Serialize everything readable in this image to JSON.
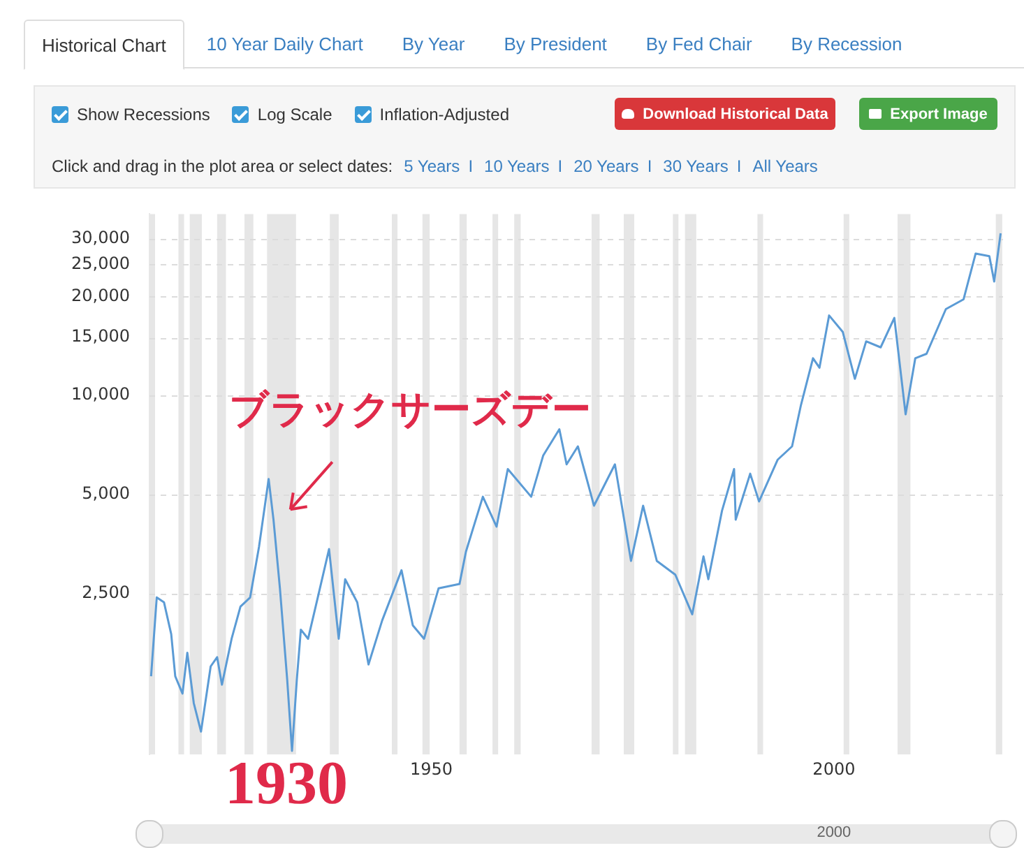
{
  "chart_data": {
    "type": "line",
    "x": [
      1915.2,
      1915.9,
      1916.8,
      1917.7,
      1918.2,
      1919.1,
      1919.7,
      1920.5,
      1921.4,
      1922.6,
      1923.4,
      1924.0,
      1925.2,
      1926.3,
      1927.5,
      1928.6,
      1929.8,
      1930.4,
      1931.2,
      1932.1,
      1932.7,
      1933.3,
      1933.8,
      1934.7,
      1935.9,
      1937.3,
      1938.5,
      1939.3,
      1940.8,
      1942.2,
      1943.9,
      1946.3,
      1947.7,
      1949.1,
      1950.9,
      1953.5,
      1954.3,
      1956.4,
      1958.1,
      1959.5,
      1962.4,
      1963.9,
      1965.9,
      1966.8,
      1968.2,
      1970.2,
      1972.8,
      1974.8,
      1976.3,
      1978.0,
      1980.3,
      1982.4,
      1983.8,
      1984.4,
      1986.1,
      1987.6,
      1987.8,
      1989.6,
      1990.7,
      1993.0,
      1994.8,
      1995.9,
      1997.4,
      1998.2,
      1999.4,
      2001.1,
      2002.6,
      2004.0,
      2005.8,
      2007.5,
      2008.9,
      2010.1,
      2011.5,
      2013.9,
      2016.1,
      2017.6,
      2019.3,
      2019.9,
      2020.7
    ],
    "series": [
      {
        "color": "#5b9bd5",
        "values": [
          1400,
          2430,
          2350,
          1880,
          1400,
          1240,
          1650,
          1160,
          950,
          1500,
          1600,
          1320,
          1820,
          2280,
          2430,
          3460,
          5570,
          4190,
          2590,
          1370,
          830,
          1370,
          1940,
          1820,
          2430,
          3410,
          1820,
          2760,
          2350,
          1520,
          2070,
          2940,
          2000,
          1820,
          2590,
          2670,
          3350,
          4920,
          3990,
          5970,
          4920,
          6570,
          7890,
          6170,
          7000,
          4620,
          6170,
          3140,
          4620,
          3140,
          2850,
          2160,
          3240,
          2760,
          4460,
          5970,
          4190,
          5780,
          4760,
          6370,
          7000,
          9340,
          12970,
          12140,
          17500,
          15590,
          11230,
          14600,
          14000,
          17200,
          8760,
          12970,
          13380,
          18300,
          19600,
          27000,
          26500,
          22200,
          31100
        ]
      }
    ],
    "log": "y",
    "xlim": [
      1915,
      2021
    ],
    "ylim": [
      810,
      35600
    ],
    "xticks": [
      1950,
      2000
    ],
    "yticks": [
      {
        "value": 2500,
        "label": "2,500"
      },
      {
        "value": 5000,
        "label": "5,000"
      },
      {
        "value": 10000,
        "label": "10,000"
      },
      {
        "value": 15000,
        "label": "15,000"
      },
      {
        "value": 20000,
        "label": "20,000"
      },
      {
        "value": 25000,
        "label": "25,000"
      },
      {
        "value": 30000,
        "label": "30,000"
      }
    ],
    "grid": "y",
    "line_style": "solid",
    "marker": "none",
    "bands": [
      {
        "axis": "x",
        "from": 1915.0,
        "to": 1915.6,
        "color": "#e6e6e6"
      },
      {
        "axis": "x",
        "from": 1918.6,
        "to": 1919.2,
        "color": "#e6e6e6"
      },
      {
        "axis": "x",
        "from": 1920.0,
        "to": 1921.5,
        "color": "#e6e6e6"
      },
      {
        "axis": "x",
        "from": 1923.4,
        "to": 1924.5,
        "color": "#e6e6e6"
      },
      {
        "axis": "x",
        "from": 1926.8,
        "to": 1927.9,
        "color": "#e6e6e6"
      },
      {
        "axis": "x",
        "from": 1929.6,
        "to": 1933.2,
        "color": "#e6e6e6"
      },
      {
        "axis": "x",
        "from": 1937.4,
        "to": 1938.5,
        "color": "#e6e6e6"
      },
      {
        "axis": "x",
        "from": 1945.1,
        "to": 1945.8,
        "color": "#e6e6e6"
      },
      {
        "axis": "x",
        "from": 1948.9,
        "to": 1949.8,
        "color": "#e6e6e6"
      },
      {
        "axis": "x",
        "from": 1953.5,
        "to": 1954.4,
        "color": "#e6e6e6"
      },
      {
        "axis": "x",
        "from": 1957.6,
        "to": 1958.3,
        "color": "#e6e6e6"
      },
      {
        "axis": "x",
        "from": 1960.3,
        "to": 1961.1,
        "color": "#e6e6e6"
      },
      {
        "axis": "x",
        "from": 1969.9,
        "to": 1970.9,
        "color": "#e6e6e6"
      },
      {
        "axis": "x",
        "from": 1973.9,
        "to": 1975.2,
        "color": "#e6e6e6"
      },
      {
        "axis": "x",
        "from": 1980.0,
        "to": 1980.5,
        "color": "#e6e6e6"
      },
      {
        "axis": "x",
        "from": 1981.5,
        "to": 1982.9,
        "color": "#e6e6e6"
      },
      {
        "axis": "x",
        "from": 1990.5,
        "to": 1991.2,
        "color": "#e6e6e6"
      },
      {
        "axis": "x",
        "from": 2001.2,
        "to": 2001.9,
        "color": "#e6e6e6"
      },
      {
        "axis": "x",
        "from": 2007.9,
        "to": 2009.5,
        "color": "#e6e6e6"
      },
      {
        "axis": "x",
        "from": 2020.1,
        "to": 2020.9,
        "color": "#e6e6e6"
      }
    ],
    "annotations": [
      "Historical Chart",
      "10 Year Daily Chart",
      "By Year",
      "By President",
      "By Fed Chair",
      "By Recession",
      "Show Recessions",
      "Log Scale",
      "Inflation-Adjusted",
      "Download Historical Data",
      "Export Image",
      "Click and drag in the plot area or select dates:",
      "5 Years",
      "I",
      "10 Years",
      "I",
      "20 Years",
      "I",
      "30 Years",
      "I",
      "All Years",
      "2000",
      "1930",
      {
        "text": "ブラックサーズデー",
        "x": 1932.5,
        "y": 4500
      }
    ]
  }
}
